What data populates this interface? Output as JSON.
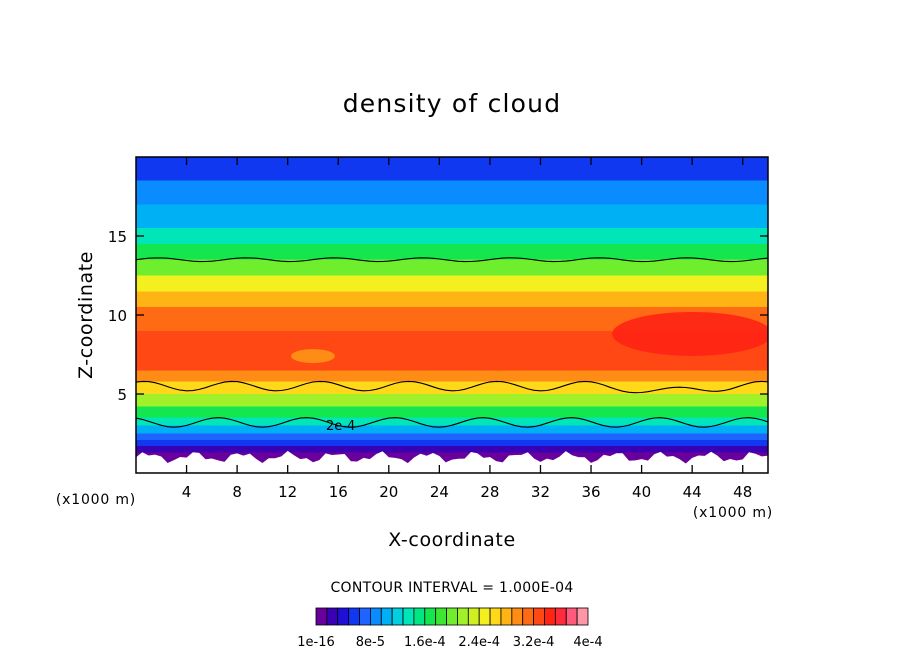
{
  "chart_data": {
    "type": "heatmap",
    "subtype": "filled-contour",
    "title": "density of cloud",
    "xlabel": "X-coordinate",
    "ylabel": "Z-coordinate",
    "x_unit_label": "(x1000 m)",
    "y_unit_label": "(x1000 m)",
    "xlim": [
      0,
      50
    ],
    "ylim": [
      0,
      20
    ],
    "x_ticks": [
      4,
      8,
      12,
      16,
      20,
      24,
      28,
      32,
      36,
      40,
      44,
      48
    ],
    "y_ticks": [
      5,
      10,
      15
    ],
    "grid": false,
    "colorbar": {
      "title": "CONTOUR INTERVAL = 1.000E-04",
      "labels": [
        "1e-16",
        "8e-5",
        "1.6e-4",
        "2.4e-4",
        "3.2e-4",
        "4e-4"
      ],
      "label_values": [
        0,
        8e-05,
        0.00016,
        0.00024,
        0.00032,
        0.0004
      ],
      "range": [
        0,
        0.0004
      ],
      "colors": [
        "#6a009c",
        "#3a00b4",
        "#1e10d6",
        "#1038f0",
        "#1e64ff",
        "#0a8cff",
        "#00b0f4",
        "#00d0e0",
        "#00e6b8",
        "#00e684",
        "#14e650",
        "#3ce632",
        "#6eee2c",
        "#a0f02a",
        "#cef020",
        "#f4f020",
        "#ffd81a",
        "#ffb414",
        "#ff8c14",
        "#ff6a14",
        "#ff4814",
        "#ff2414",
        "#ff2a3c",
        "#ff5a7c",
        "#ff96a8"
      ]
    },
    "contour_lines": [
      {
        "value": "1e-4",
        "approx_z": [
          13.5,
          5.5,
          3.2
        ]
      },
      {
        "value": "2e-4",
        "label_at_x": 16.5,
        "label_at_z": 3.3
      }
    ],
    "bands_by_height": [
      {
        "z": 20.0,
        "level": 6e-05
      },
      {
        "z": 18.5,
        "level": 8e-05
      },
      {
        "z": 17.0,
        "level": 0.00011
      },
      {
        "z": 15.5,
        "level": 0.00014
      },
      {
        "z": 14.5,
        "level": 0.00017
      },
      {
        "z": 13.5,
        "level": 0.0002
      },
      {
        "z": 12.5,
        "level": 0.00024
      },
      {
        "z": 11.5,
        "level": 0.00028
      },
      {
        "z": 10.5,
        "level": 0.00031
      },
      {
        "z": 9.0,
        "level": 0.00033
      },
      {
        "z": 7.5,
        "level": 0.00032
      },
      {
        "z": 6.5,
        "level": 0.0003
      },
      {
        "z": 5.8,
        "level": 0.00027
      },
      {
        "z": 5.0,
        "level": 0.00022
      },
      {
        "z": 4.2,
        "level": 0.00017
      },
      {
        "z": 3.5,
        "level": 0.00013
      },
      {
        "z": 3.0,
        "level": 0.0001
      },
      {
        "z": 2.5,
        "level": 7e-05
      },
      {
        "z": 2.1,
        "level": 5e-05
      },
      {
        "z": 1.7,
        "level": 3e-05
      },
      {
        "z": 1.3,
        "level": 1e-05
      },
      {
        "z": 0.9,
        "level": 0.0
      }
    ]
  }
}
